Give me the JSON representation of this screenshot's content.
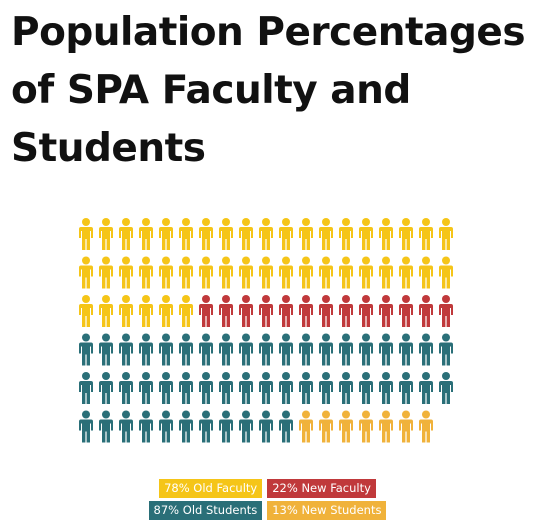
{
  "title": "Population Percentages of SPA Faculty and Students",
  "colors": {
    "old_faculty": "#F5C518",
    "new_faculty": "#C0393B",
    "old_students": "#2A6F78",
    "new_students": "#F0B23A"
  },
  "chart_data": {
    "type": "pictograph",
    "title": "Population Percentages of SPA Faculty and Students",
    "grid": {
      "rows": 6,
      "columns": 19
    },
    "series": [
      {
        "name": "78% Old Faculty",
        "key": "old_faculty",
        "percent": 78,
        "icon_count": 44,
        "color": "#F5C518"
      },
      {
        "name": "22% New Faculty",
        "key": "new_faculty",
        "percent": 22,
        "icon_count": 13,
        "color": "#C0393B"
      },
      {
        "name": "87% Old Students",
        "key": "old_students",
        "percent": 87,
        "icon_count": 49,
        "color": "#2A6F78"
      },
      {
        "name": "13% New Students",
        "key": "new_students",
        "percent": 13,
        "icon_count": 7,
        "color": "#F0B23A"
      }
    ],
    "legend_position": "bottom"
  },
  "legend": [
    {
      "label": "78% Old Faculty",
      "color": "#F5C518"
    },
    {
      "label": "22% New Faculty",
      "color": "#C0393B"
    },
    {
      "label": "87% Old Students",
      "color": "#2A6F78"
    },
    {
      "label": "13% New Students",
      "color": "#F0B23A"
    }
  ]
}
